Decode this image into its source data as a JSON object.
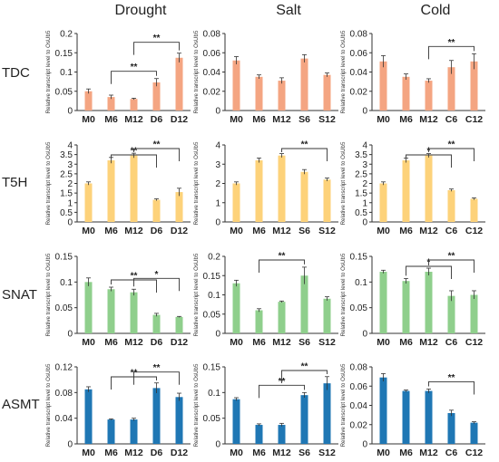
{
  "column_titles": [
    "Drought",
    "Salt",
    "Cold"
  ],
  "row_labels": [
    "TDC",
    "T5H",
    "SNAT",
    "ASMT"
  ],
  "y_axis_label": "Relative transcript level to OsUb5",
  "colors": {
    "TDC": "#f4a582",
    "T5H": "#fdd27a",
    "SNAT": "#8fcf8c",
    "ASMT": "#1f77b4"
  },
  "chart_data": [
    {
      "type": "bar",
      "row": "TDC",
      "column": "Drought",
      "categories": [
        "M0",
        "M6",
        "M12",
        "D6",
        "D12"
      ],
      "values": [
        0.05,
        0.035,
        0.03,
        0.073,
        0.137
      ],
      "errors": [
        0.006,
        0.005,
        0.002,
        0.01,
        0.012
      ],
      "ylim": [
        0,
        0.2
      ],
      "yticks": [
        0,
        0.05,
        0.1,
        0.15,
        0.2
      ],
      "ytick_labels": [
        "0",
        "0.05",
        "0.1",
        "0.15",
        "0.2"
      ],
      "significance": [
        {
          "from": 1,
          "to": 3,
          "label": "**"
        },
        {
          "from": 2,
          "to": 4,
          "label": "**"
        }
      ]
    },
    {
      "type": "bar",
      "row": "TDC",
      "column": "Salt",
      "categories": [
        "M0",
        "M6",
        "M12",
        "S6",
        "S12"
      ],
      "values": [
        0.052,
        0.035,
        0.031,
        0.054,
        0.037
      ],
      "errors": [
        0.004,
        0.002,
        0.003,
        0.004,
        0.002
      ],
      "ylim": [
        0,
        0.08
      ],
      "yticks": [
        0,
        0.02,
        0.04,
        0.06,
        0.08
      ],
      "ytick_labels": [
        "0",
        "0.02",
        "0.04",
        "0.06",
        "0.08"
      ],
      "significance": []
    },
    {
      "type": "bar",
      "row": "TDC",
      "column": "Cold",
      "categories": [
        "M0",
        "M6",
        "M12",
        "C6",
        "C12"
      ],
      "values": [
        0.051,
        0.035,
        0.031,
        0.045,
        0.051
      ],
      "errors": [
        0.006,
        0.003,
        0.002,
        0.007,
        0.008
      ],
      "ylim": [
        0,
        0.08
      ],
      "yticks": [
        0,
        0.02,
        0.04,
        0.06,
        0.08
      ],
      "ytick_labels": [
        "0",
        "0.02",
        "0.04",
        "0.06",
        "0.08"
      ],
      "significance": [
        {
          "from": 2,
          "to": 4,
          "label": "**"
        }
      ]
    },
    {
      "type": "bar",
      "row": "T5H",
      "column": "Drought",
      "categories": [
        "M0",
        "M6",
        "M12",
        "D6",
        "D12"
      ],
      "values": [
        2.0,
        3.2,
        3.45,
        1.15,
        1.55
      ],
      "errors": [
        0.08,
        0.15,
        0.12,
        0.05,
        0.2
      ],
      "ylim": [
        0,
        4
      ],
      "yticks": [
        0,
        0.5,
        1,
        1.5,
        2,
        2.5,
        3,
        3.5,
        4
      ],
      "ytick_labels": [
        "0",
        "0.5",
        "1",
        "1.5",
        "2",
        "2.5",
        "3",
        "3.5",
        "4"
      ],
      "significance": [
        {
          "from": 1,
          "to": 3,
          "label": "**"
        },
        {
          "from": 2,
          "to": 4,
          "label": "**"
        }
      ]
    },
    {
      "type": "bar",
      "row": "T5H",
      "column": "Salt",
      "categories": [
        "M0",
        "M6",
        "M12",
        "S6",
        "S12"
      ],
      "values": [
        2.0,
        3.2,
        3.45,
        2.6,
        2.2
      ],
      "errors": [
        0.08,
        0.12,
        0.1,
        0.12,
        0.08
      ],
      "ylim": [
        0,
        4
      ],
      "yticks": [
        0,
        1,
        2,
        3,
        4
      ],
      "ytick_labels": [
        "0",
        "1",
        "2",
        "3",
        "4"
      ],
      "significance": [
        {
          "from": 2,
          "to": 4,
          "label": "**"
        }
      ]
    },
    {
      "type": "bar",
      "row": "T5H",
      "column": "Cold",
      "categories": [
        "M0",
        "M6",
        "M12",
        "C6",
        "C12"
      ],
      "values": [
        2.0,
        3.2,
        3.45,
        1.65,
        1.2
      ],
      "errors": [
        0.08,
        0.12,
        0.1,
        0.06,
        0.05
      ],
      "ylim": [
        0,
        4
      ],
      "yticks": [
        0,
        0.5,
        1,
        1.5,
        2,
        2.5,
        3,
        3.5,
        4
      ],
      "ytick_labels": [
        "0",
        "0.5",
        "1",
        "1.5",
        "2",
        "2.5",
        "3",
        "3.5",
        "4"
      ],
      "significance": [
        {
          "from": 1,
          "to": 3,
          "label": "*"
        },
        {
          "from": 2,
          "to": 4,
          "label": "**"
        }
      ]
    },
    {
      "type": "bar",
      "row": "SNAT",
      "column": "Drought",
      "categories": [
        "M0",
        "M6",
        "M12",
        "D6",
        "D12"
      ],
      "values": [
        0.1,
        0.086,
        0.08,
        0.036,
        0.032
      ],
      "errors": [
        0.008,
        0.004,
        0.006,
        0.003,
        0.001
      ],
      "ylim": [
        0,
        0.15
      ],
      "yticks": [
        0,
        0.05,
        0.1,
        0.15
      ],
      "ytick_labels": [
        "0",
        "0.05",
        "0.1",
        "0.15"
      ],
      "significance": [
        {
          "from": 1,
          "to": 3,
          "label": "**"
        },
        {
          "from": 2,
          "to": 4,
          "label": "*"
        }
      ]
    },
    {
      "type": "bar",
      "row": "SNAT",
      "column": "Salt",
      "categories": [
        "M0",
        "M6",
        "M12",
        "S6",
        "S12"
      ],
      "values": [
        0.13,
        0.06,
        0.082,
        0.15,
        0.09
      ],
      "errors": [
        0.008,
        0.004,
        0.002,
        0.022,
        0.005
      ],
      "ylim": [
        0,
        0.2
      ],
      "yticks": [
        0,
        0.05,
        0.1,
        0.15,
        0.2
      ],
      "ytick_labels": [
        "0",
        "0.05",
        "0.1",
        "0.15",
        "0.2"
      ],
      "significance": [
        {
          "from": 1,
          "to": 3,
          "label": "**"
        }
      ]
    },
    {
      "type": "bar",
      "row": "SNAT",
      "column": "Cold",
      "categories": [
        "M0",
        "M6",
        "M12",
        "C6",
        "C12"
      ],
      "values": [
        0.12,
        0.102,
        0.12,
        0.073,
        0.075
      ],
      "errors": [
        0.003,
        0.005,
        0.007,
        0.01,
        0.008
      ],
      "ylim": [
        0,
        0.15
      ],
      "yticks": [
        0,
        0.05,
        0.1,
        0.15
      ],
      "ytick_labels": [
        "0",
        "0.05",
        "0.1",
        "0.15"
      ],
      "significance": [
        {
          "from": 1,
          "to": 3,
          "label": "*"
        },
        {
          "from": 2,
          "to": 4,
          "label": "**"
        }
      ]
    },
    {
      "type": "bar",
      "row": "ASMT",
      "column": "Drought",
      "categories": [
        "M0",
        "M6",
        "M12",
        "D6",
        "D12"
      ],
      "values": [
        0.085,
        0.038,
        0.038,
        0.087,
        0.073
      ],
      "errors": [
        0.004,
        0.001,
        0.002,
        0.008,
        0.006
      ],
      "ylim": [
        0,
        0.12
      ],
      "yticks": [
        0,
        0.04,
        0.08,
        0.12
      ],
      "ytick_labels": [
        "0",
        "0.04",
        "0.08",
        "0.12"
      ],
      "significance": [
        {
          "from": 1,
          "to": 3,
          "label": "**"
        },
        {
          "from": 2,
          "to": 4,
          "label": "**"
        }
      ]
    },
    {
      "type": "bar",
      "row": "ASMT",
      "column": "Salt",
      "categories": [
        "M0",
        "M6",
        "M12",
        "S6",
        "S12"
      ],
      "values": [
        0.087,
        0.037,
        0.037,
        0.095,
        0.118
      ],
      "errors": [
        0.003,
        0.002,
        0.003,
        0.005,
        0.013
      ],
      "ylim": [
        0,
        0.15
      ],
      "yticks": [
        0,
        0.05,
        0.1,
        0.15
      ],
      "ytick_labels": [
        "0",
        "0.05",
        "0.1",
        "0.15"
      ],
      "significance": [
        {
          "from": 1,
          "to": 3,
          "label": "**"
        },
        {
          "from": 2,
          "to": 4,
          "label": "**"
        }
      ]
    },
    {
      "type": "bar",
      "row": "ASMT",
      "column": "Cold",
      "categories": [
        "M0",
        "M6",
        "M12",
        "C6",
        "C12"
      ],
      "values": [
        0.069,
        0.055,
        0.055,
        0.032,
        0.022
      ],
      "errors": [
        0.004,
        0.001,
        0.002,
        0.003,
        0.001
      ],
      "ylim": [
        0,
        0.08
      ],
      "yticks": [
        0,
        0.02,
        0.04,
        0.06,
        0.08
      ],
      "ytick_labels": [
        "0",
        "0.02",
        "0.04",
        "0.06",
        "0.08"
      ],
      "significance": [
        {
          "from": 2,
          "to": 4,
          "label": "**"
        }
      ]
    }
  ]
}
